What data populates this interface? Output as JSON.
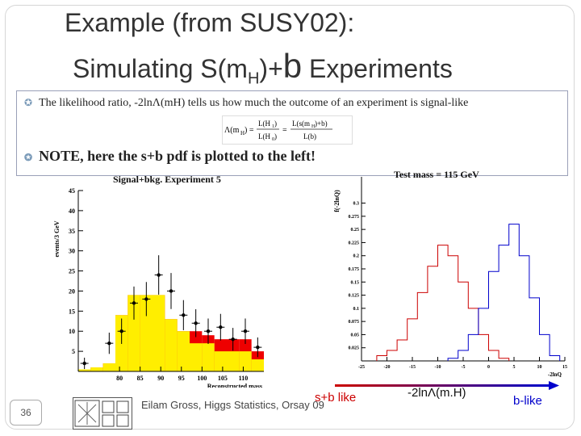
{
  "slide": {
    "title_line1": "Example  (from SUSY02):",
    "title_line2_a": "Simulating S(m",
    "title_line2_sub": "H",
    "title_line2_b": ")+",
    "title_line2_big": "b",
    "title_line2_c": " Experiments",
    "bullet1": "The likelihood ratio, -2lnΛ(mH) tells us how much the outcome of an experiment is signal-like",
    "bullet2": "NOTE, here the s+b pdf is plotted to the left!",
    "formula_left": "Λ(m_H) = L(H1)/L(H0) = L(s(m_H)+b)/L(b)",
    "slide_number": "36",
    "footer_author": "Eilam Gross, Higgs Statistics, Orsay 09",
    "label_sb": "s+b like",
    "label_mid": "-2lnΛ(m.H)",
    "label_b": "b-like",
    "colors": {
      "sb": "#cc0000",
      "b": "#0000cc",
      "fill": "#ffee00",
      "sig": "#ee0000"
    }
  },
  "chart_data": [
    {
      "type": "bar",
      "title": "Signal+bkg. Experiment 5",
      "xlabel": "Reconstructed mass",
      "ylabel": "events/3 GeV",
      "xlim": [
        70,
        115
      ],
      "ylim": [
        0,
        45
      ],
      "x_ticks": [
        "80",
        "85",
        "90",
        "95",
        "100",
        "105",
        "110"
      ],
      "y_ticks": [
        "5",
        "10",
        "15",
        "20",
        "25",
        "30",
        "35",
        "40",
        "45"
      ],
      "background": [
        0.5,
        1,
        2,
        14,
        19,
        19,
        19,
        13,
        10,
        7,
        7,
        5,
        5,
        5,
        3
      ],
      "signal_plus_background": [
        0.5,
        1,
        2,
        14,
        19,
        19,
        19,
        13,
        10,
        10,
        9,
        8,
        8,
        8,
        5
      ],
      "data_points": [
        {
          "x": 71.5,
          "y": 2
        },
        {
          "x": 77.5,
          "y": 7
        },
        {
          "x": 80.5,
          "y": 10
        },
        {
          "x": 83.5,
          "y": 17
        },
        {
          "x": 86.5,
          "y": 18
        },
        {
          "x": 89.5,
          "y": 24
        },
        {
          "x": 92.5,
          "y": 20
        },
        {
          "x": 95.5,
          "y": 14
        },
        {
          "x": 98.5,
          "y": 12
        },
        {
          "x": 101.5,
          "y": 10
        },
        {
          "x": 104.5,
          "y": 11
        },
        {
          "x": 107.5,
          "y": 8
        },
        {
          "x": 110.5,
          "y": 10
        },
        {
          "x": 113.5,
          "y": 6
        }
      ]
    },
    {
      "type": "line",
      "title": "Test mass = 115 GeV",
      "xlabel": "-2lnQ",
      "ylabel": "f(-2lnQ)",
      "xlim": [
        -25,
        15
      ],
      "ylim": [
        0,
        0.35
      ],
      "x_ticks": [
        "-25",
        "-20",
        "-15",
        "-10",
        "-5",
        "0",
        "5",
        "10",
        "15"
      ],
      "y_ticks": [
        "0.025",
        "0.05",
        "0.075",
        "0.1",
        "0.125",
        "0.15",
        "0.175",
        "0.2",
        "0.225",
        "0.25",
        "0.275",
        "0.3"
      ],
      "series": [
        {
          "x": [
            -22,
            -20,
            -18,
            -16,
            -14,
            -12,
            -10,
            -8,
            -6,
            -4,
            -2,
            0,
            2
          ],
          "values": [
            0.01,
            0.02,
            0.04,
            0.08,
            0.13,
            0.18,
            0.22,
            0.2,
            0.15,
            0.1,
            0.05,
            0.02,
            0.005
          ]
        },
        {
          "x": [
            -8,
            -6,
            -4,
            -2,
            0,
            2,
            4,
            6,
            8,
            10,
            12
          ],
          "values": [
            0.005,
            0.02,
            0.05,
            0.1,
            0.17,
            0.22,
            0.26,
            0.2,
            0.12,
            0.05,
            0.01
          ]
        }
      ]
    }
  ]
}
